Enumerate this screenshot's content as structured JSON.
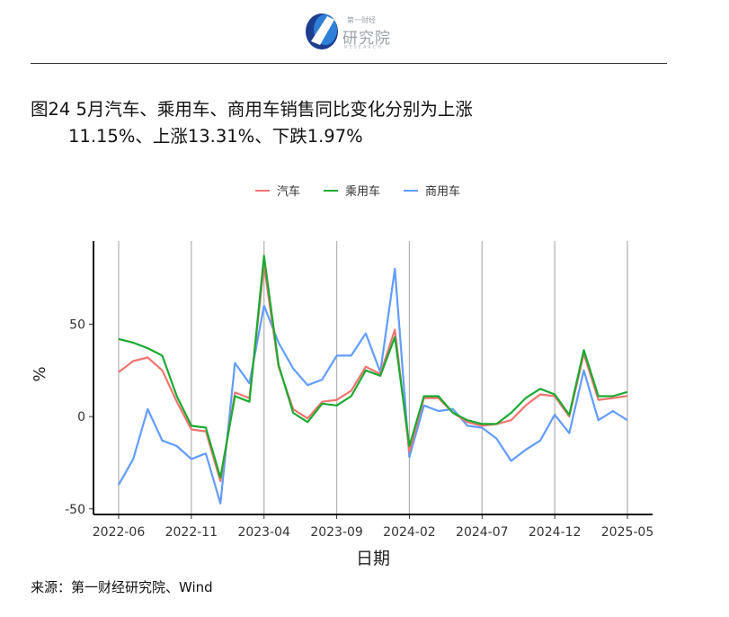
{
  "header": {
    "logo_top": "第一财经",
    "logo_title": "研究院",
    "logo_sub": "RESEARCH"
  },
  "title": {
    "line1": "图24 5月汽车、乘用车、商用车销售同比变化分别为上涨",
    "line2": "11.15%、上涨13.31%、下跌1.97%"
  },
  "source": "来源：第一财经研究院、Wind",
  "chart_data": {
    "type": "line",
    "xlabel": "日期",
    "ylabel": "%",
    "ylim": [
      -53,
      95
    ],
    "yticks": [
      -50,
      0,
      50
    ],
    "ytick_labels": [
      "-50",
      "0",
      "50"
    ],
    "x": [
      "2022-06",
      "2022-07",
      "2022-08",
      "2022-09",
      "2022-10",
      "2022-11",
      "2022-12",
      "2023-01",
      "2023-02",
      "2023-03",
      "2023-04",
      "2023-05",
      "2023-06",
      "2023-07",
      "2023-08",
      "2023-09",
      "2023-10",
      "2023-11",
      "2023-12",
      "2024-01",
      "2024-02",
      "2024-03",
      "2024-04",
      "2024-05",
      "2024-06",
      "2024-07",
      "2024-08",
      "2024-09",
      "2024-10",
      "2024-11",
      "2024-12",
      "2025-01",
      "2025-02",
      "2025-03",
      "2025-04",
      "2025-05"
    ],
    "xticks": [
      "2022-06",
      "2022-11",
      "2023-04",
      "2023-09",
      "2024-02",
      "2024-07",
      "2024-12",
      "2025-05"
    ],
    "grid": "vertical lines at x ticks",
    "legend": "top",
    "series": [
      {
        "name": "汽车",
        "color": "#F07470",
        "values": [
          24,
          30,
          32,
          25,
          8,
          -7,
          -8,
          -35,
          13,
          10,
          82,
          27,
          4,
          -1,
          8,
          9,
          14,
          27,
          23,
          47,
          -19,
          10,
          10,
          2,
          -3,
          -5,
          -4,
          -2,
          6,
          12,
          11,
          0,
          34,
          9,
          10,
          11.15
        ]
      },
      {
        "name": "乘用车",
        "color": "#1BAA30",
        "values": [
          42,
          40,
          37,
          33,
          11,
          -5,
          -6,
          -33,
          11,
          8,
          87,
          28,
          2,
          -3,
          7,
          6,
          11,
          25,
          22,
          43,
          -16,
          11,
          11,
          2,
          -2,
          -4,
          -4,
          2,
          10,
          15,
          12,
          1,
          36,
          11,
          11,
          13.31
        ]
      },
      {
        "name": "商用车",
        "color": "#619CFF",
        "values": [
          -37,
          -23,
          4,
          -13,
          -16,
          -23,
          -20,
          -47,
          29,
          18,
          60,
          40,
          26,
          17,
          20,
          33,
          33,
          45,
          24,
          80,
          -22,
          6,
          3,
          4,
          -5,
          -6,
          -12,
          -24,
          -18,
          -13,
          1,
          -9,
          25,
          -2,
          3,
          -1.97
        ]
      }
    ]
  }
}
